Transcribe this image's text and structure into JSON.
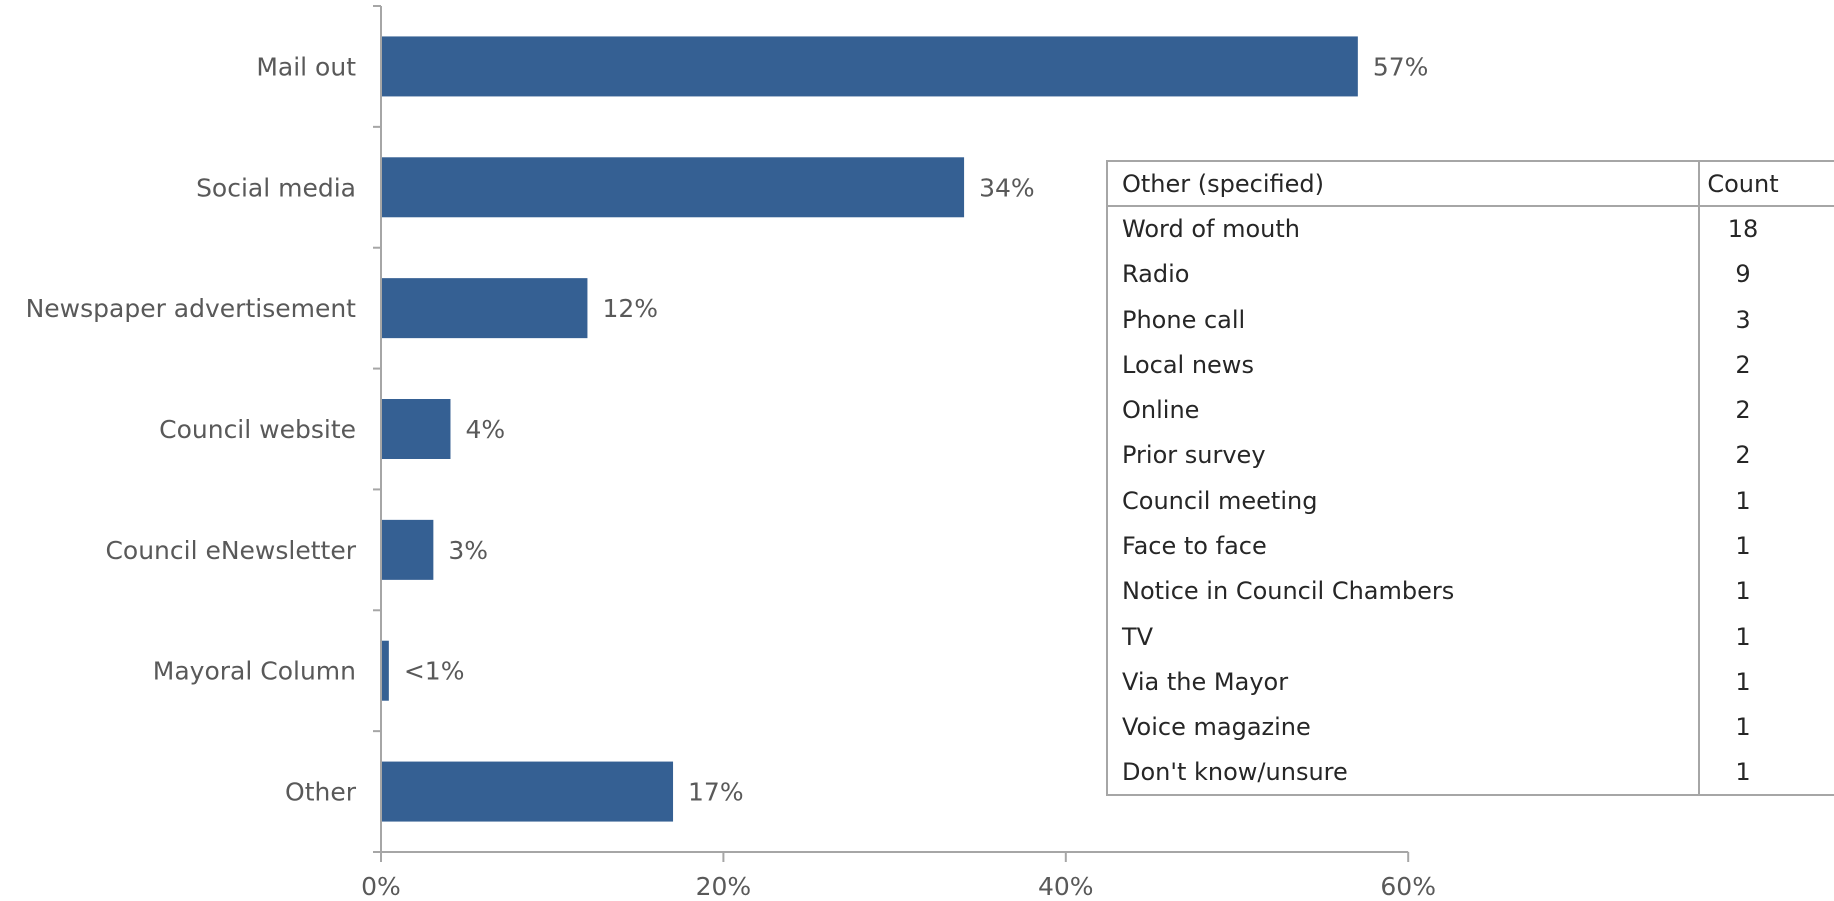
{
  "chart_data": {
    "type": "bar",
    "orientation": "horizontal",
    "categories": [
      "Mail out",
      "Social media",
      "Newspaper advertisement",
      "Council website",
      "Council eNewsletter",
      "Mayoral Column",
      "Other"
    ],
    "values": [
      57,
      34,
      12,
      4,
      3,
      0.4,
      17
    ],
    "value_labels": [
      "57%",
      "34%",
      "12%",
      "4%",
      "3%",
      "<1%",
      "17%"
    ],
    "xlim": [
      0,
      60
    ],
    "xticks": [
      0,
      20,
      40,
      60
    ],
    "xtick_labels": [
      "0%",
      "20%",
      "40%",
      "60%"
    ],
    "grid": false,
    "bar_color": "#356093",
    "title": "",
    "xlabel": "",
    "ylabel": ""
  },
  "other_table": {
    "headers": [
      "Other (specified)",
      "Count"
    ],
    "rows": [
      {
        "label": "Word of mouth",
        "count": "18"
      },
      {
        "label": "Radio",
        "count": "9"
      },
      {
        "label": "Phone call",
        "count": "3"
      },
      {
        "label": "Local news",
        "count": "2"
      },
      {
        "label": "Online",
        "count": "2"
      },
      {
        "label": "Prior survey",
        "count": "2"
      },
      {
        "label": "Council meeting",
        "count": "1"
      },
      {
        "label": "Face to face",
        "count": "1"
      },
      {
        "label": "Notice in Council Chambers",
        "count": "1"
      },
      {
        "label": "TV",
        "count": "1"
      },
      {
        "label": "Via the Mayor",
        "count": "1"
      },
      {
        "label": "Voice magazine",
        "count": "1"
      },
      {
        "label": "Don't know/unsure",
        "count": "1"
      }
    ]
  }
}
